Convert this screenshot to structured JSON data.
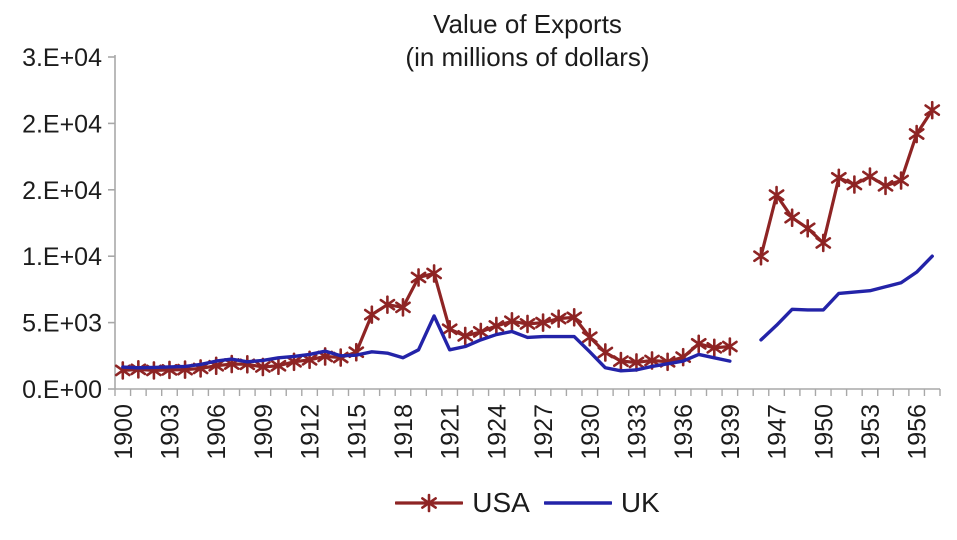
{
  "title": {
    "line1": "Value of Exports",
    "line2": "(in millions of dollars)"
  },
  "legend": {
    "items": [
      {
        "label": "USA",
        "color": "#8E2424",
        "marker": "asterisk"
      },
      {
        "label": "UK",
        "color": "#2323A8",
        "marker": "none"
      }
    ]
  },
  "colors": {
    "background": "#FFFFFF",
    "axis": "#A8A8A8",
    "text": "#1C1C1C",
    "usa": "#8E2424",
    "uk": "#2323A8"
  },
  "chart_data": {
    "type": "line",
    "title": "Value of Exports",
    "subtitle": "(in millions of dollars)",
    "grid": false,
    "legend_position": "bottom",
    "x_label_every": 3,
    "x_label_rotation": -90,
    "ylim": [
      0,
      25000
    ],
    "y_ticks": [
      {
        "value": 0,
        "label": "0.E+00"
      },
      {
        "value": 5000,
        "label": "5.E+03"
      },
      {
        "value": 10000,
        "label": "1.E+04"
      },
      {
        "value": 15000,
        "label": "2.E+04"
      },
      {
        "value": 20000,
        "label": "2.E+04"
      },
      {
        "value": 25000,
        "label": "3.E+04"
      }
    ],
    "x_categories": [
      "1900",
      "1901",
      "1902",
      "1903",
      "1904",
      "1905",
      "1906",
      "1907",
      "1908",
      "1909",
      "1910",
      "1911",
      "1912",
      "1913",
      "1914",
      "1915",
      "1916",
      "1917",
      "1918",
      "1919",
      "1920",
      "1921",
      "1922",
      "1923",
      "1924",
      "1925",
      "1926",
      "1927",
      "1928",
      "1929",
      "1930",
      "1931",
      "1932",
      "1933",
      "1934",
      "1935",
      "1936",
      "1937",
      "1938",
      "1939",
      "1945",
      "1946",
      "1947",
      "1948",
      "1949",
      "1950",
      "1951",
      "1952",
      "1953",
      "1954",
      "1955",
      "1956",
      "1957"
    ],
    "series": [
      {
        "name": "USA",
        "color": "#8E2424",
        "marker": "asterisk",
        "line_width": 3.2,
        "values": [
          1400,
          1480,
          1400,
          1440,
          1460,
          1550,
          1750,
          1880,
          1860,
          1660,
          1750,
          2050,
          2200,
          2450,
          2370,
          2770,
          5600,
          6350,
          6150,
          8400,
          8700,
          4500,
          4000,
          4300,
          4750,
          5100,
          4900,
          5000,
          5300,
          5400,
          3900,
          2750,
          2100,
          2000,
          2150,
          2050,
          2400,
          3400,
          3100,
          3200,
          null,
          10000,
          14600,
          12900,
          12100,
          11000,
          15900,
          15400,
          16000,
          15300,
          15700,
          19200,
          21000
        ]
      },
      {
        "name": "UK",
        "color": "#2323A8",
        "marker": "none",
        "line_width": 3.4,
        "values": [
          1650,
          1600,
          1620,
          1660,
          1700,
          1850,
          2100,
          2250,
          2050,
          2150,
          2350,
          2450,
          2600,
          2850,
          2500,
          2550,
          2800,
          2700,
          2350,
          2950,
          5500,
          2950,
          3200,
          3700,
          4100,
          4330,
          3880,
          3950,
          3950,
          3950,
          2800,
          1600,
          1370,
          1440,
          1700,
          1900,
          2100,
          2600,
          2350,
          2100,
          null,
          3700,
          4800,
          6000,
          5950,
          5950,
          7200,
          7300,
          7400,
          7700,
          8000,
          8800,
          10000
        ]
      }
    ]
  }
}
